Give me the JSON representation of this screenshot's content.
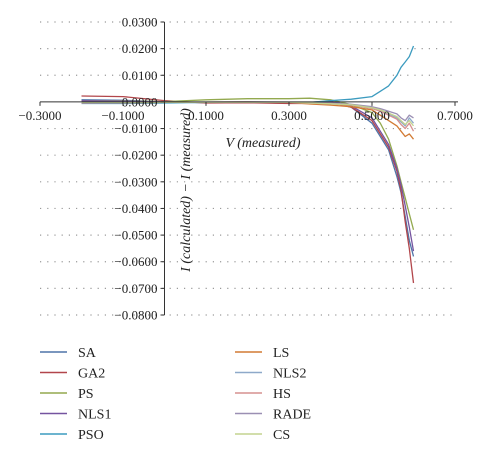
{
  "chart_data": {
    "type": "line",
    "xlabel": "V (measured)",
    "ylabel": "I (calculated) − I (measured)",
    "xlim": [
      -0.3,
      0.7
    ],
    "ylim": [
      -0.08,
      0.03
    ],
    "x_ticks": [
      {
        "value": -0.3,
        "label": "−0.3000"
      },
      {
        "value": -0.1,
        "label": "−0.1000"
      },
      {
        "value": 0.1,
        "label": "0.1000"
      },
      {
        "value": 0.3,
        "label": "0.3000"
      },
      {
        "value": 0.5,
        "label": "0.5000"
      },
      {
        "value": 0.7,
        "label": "0.7000"
      }
    ],
    "y_ticks": [
      {
        "value": 0.03,
        "label": "0.0300"
      },
      {
        "value": 0.02,
        "label": "0.0200"
      },
      {
        "value": 0.01,
        "label": "0.0100"
      },
      {
        "value": 0.0,
        "label": "0.0000"
      },
      {
        "value": -0.01,
        "label": "−0.0100"
      },
      {
        "value": -0.02,
        "label": "−0.0200"
      },
      {
        "value": -0.03,
        "label": "−0.0300"
      },
      {
        "value": -0.04,
        "label": "−0.0400"
      },
      {
        "value": -0.05,
        "label": "−0.0500"
      },
      {
        "value": -0.06,
        "label": "−0.0600"
      },
      {
        "value": -0.07,
        "label": "−0.0700"
      },
      {
        "value": -0.08,
        "label": "−0.0800"
      }
    ],
    "grid": "horizontal dotted",
    "legend_position": "bottom",
    "x": [
      -0.2,
      -0.1,
      0.0,
      0.1,
      0.2,
      0.3,
      0.35,
      0.4,
      0.45,
      0.5,
      0.52,
      0.54,
      0.56,
      0.57,
      0.58,
      0.59,
      0.6
    ],
    "series": [
      {
        "name": "SA",
        "color": "#4f74a8",
        "values": [
          0.0008,
          0.0006,
          0.0,
          -0.0003,
          -0.0002,
          -0.0005,
          -0.0005,
          0.0,
          -0.002,
          -0.008,
          -0.013,
          -0.018,
          -0.028,
          -0.034,
          -0.043,
          -0.052,
          -0.058
        ]
      },
      {
        "name": "GA2",
        "color": "#b2464b",
        "values": [
          0.0022,
          0.002,
          0.0005,
          -0.0004,
          -0.0003,
          -0.0006,
          -0.0006,
          -0.0002,
          -0.002,
          -0.007,
          -0.012,
          -0.017,
          -0.026,
          -0.033,
          -0.045,
          -0.055,
          -0.068
        ]
      },
      {
        "name": "PS",
        "color": "#93a94f",
        "values": [
          0.0004,
          0.0004,
          0.0001,
          0.0008,
          0.0012,
          0.0012,
          0.0014,
          0.0008,
          -0.001,
          -0.004,
          -0.008,
          -0.014,
          -0.024,
          -0.03,
          -0.036,
          -0.042,
          -0.048
        ]
      },
      {
        "name": "NLS1",
        "color": "#7554a0",
        "values": [
          0.0004,
          0.0003,
          0.0,
          -0.0002,
          -0.0001,
          -0.0002,
          -0.0002,
          0.0003,
          -0.0015,
          -0.006,
          -0.011,
          -0.016,
          -0.025,
          -0.031,
          -0.039,
          -0.047,
          -0.056
        ]
      },
      {
        "name": "PSO",
        "color": "#3c9bbf",
        "values": [
          -0.0006,
          -0.0006,
          -0.0004,
          -0.0002,
          -0.0001,
          -0.0001,
          -0.0002,
          0.0005,
          0.001,
          0.002,
          0.004,
          0.006,
          0.01,
          0.013,
          0.015,
          0.017,
          0.021
        ]
      },
      {
        "name": "LS",
        "color": "#d27a33",
        "values": [
          -0.0003,
          -0.0003,
          -0.0002,
          -0.0001,
          0.0,
          -0.0002,
          -0.0008,
          -0.0012,
          -0.0018,
          -0.003,
          -0.005,
          -0.007,
          -0.009,
          -0.011,
          -0.013,
          -0.012,
          -0.014
        ]
      },
      {
        "name": "NLS2",
        "color": "#8ea9c9",
        "values": [
          -0.0003,
          -0.0002,
          -0.0002,
          -0.0001,
          -0.0001,
          -0.0002,
          -0.0004,
          -0.0006,
          -0.001,
          -0.002,
          -0.003,
          -0.0045,
          -0.006,
          -0.0075,
          -0.009,
          -0.006,
          -0.008
        ]
      },
      {
        "name": "HS",
        "color": "#d6908f",
        "values": [
          -0.0004,
          -0.0003,
          -0.0002,
          -0.0002,
          -0.0001,
          -0.0002,
          -0.0005,
          -0.0008,
          -0.0012,
          -0.0025,
          -0.0035,
          -0.005,
          -0.0065,
          -0.0085,
          -0.01,
          -0.008,
          -0.011
        ]
      },
      {
        "name": "RADE",
        "color": "#9b8fb3",
        "values": [
          -0.0002,
          -0.0002,
          -0.0001,
          -0.0001,
          0.0,
          -0.0001,
          -0.0003,
          -0.0005,
          -0.0009,
          -0.0018,
          -0.0025,
          -0.0035,
          -0.0045,
          -0.006,
          -0.007,
          -0.005,
          -0.006
        ]
      },
      {
        "name": "CS",
        "color": "#c3d38f",
        "values": [
          -0.0002,
          -0.0002,
          -0.0002,
          -0.0001,
          -0.0001,
          -0.0001,
          -0.0004,
          -0.0007,
          -0.0011,
          -0.0022,
          -0.003,
          -0.0042,
          -0.0055,
          -0.007,
          -0.0085,
          -0.007,
          -0.009
        ]
      }
    ]
  }
}
